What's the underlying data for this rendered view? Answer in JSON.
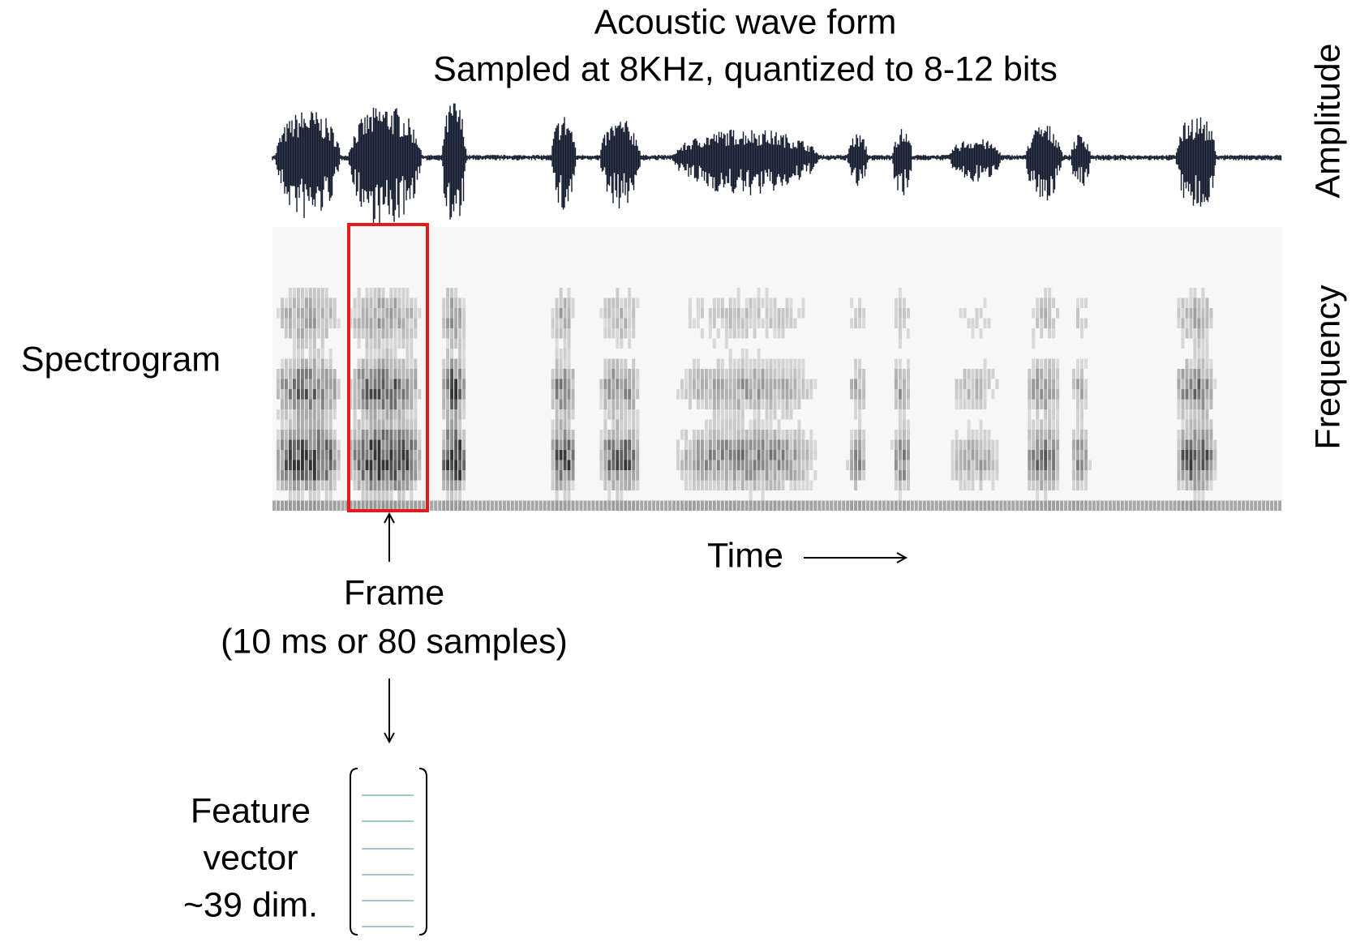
{
  "title": {
    "line1": "Acoustic wave form",
    "line2": "Sampled at 8KHz, quantized to 8-12 bits"
  },
  "axes": {
    "amplitude": "Amplitude",
    "frequency": "Frequency",
    "time": "Time"
  },
  "labels": {
    "spectrogram": "Spectrogram",
    "frame": "Frame",
    "frame_detail": "(10 ms or 80 samples)",
    "feature_vector": [
      "Feature",
      "vector",
      "~39 dim."
    ]
  }
}
